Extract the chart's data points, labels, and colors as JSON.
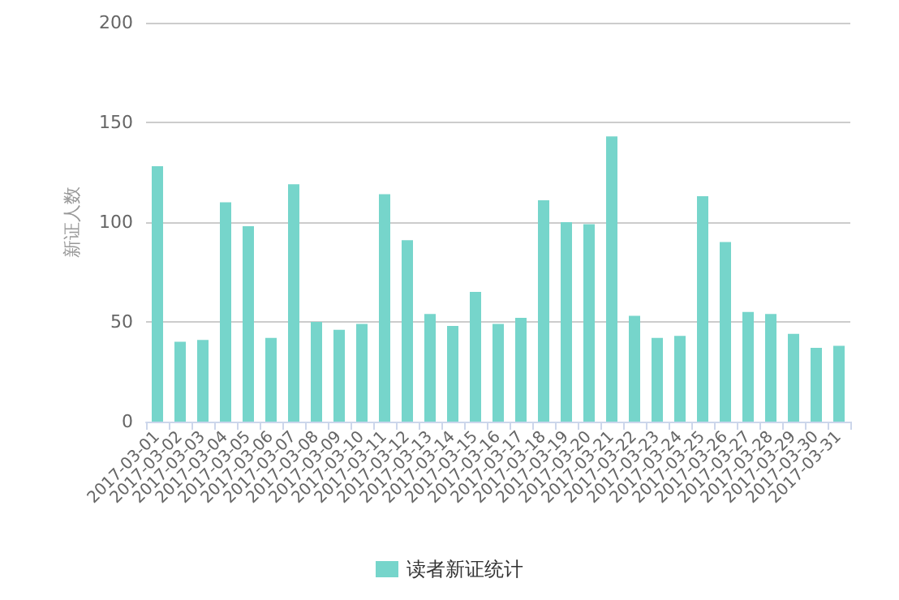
{
  "chart_data": {
    "type": "bar",
    "ylabel": "新证人数",
    "categories": [
      "2017-03-01",
      "2017-03-02",
      "2017-03-03",
      "2017-03-04",
      "2017-03-05",
      "2017-03-06",
      "2017-03-07",
      "2017-03-08",
      "2017-03-09",
      "2017-03-10",
      "2017-03-11",
      "2017-03-12",
      "2017-03-13",
      "2017-03-14",
      "2017-03-15",
      "2017-03-16",
      "2017-03-17",
      "2017-03-18",
      "2017-03-19",
      "2017-03-20",
      "2017-03-21",
      "2017-03-22",
      "2017-03-23",
      "2017-03-24",
      "2017-03-25",
      "2017-03-26",
      "2017-03-27",
      "2017-03-28",
      "2017-03-29",
      "2017-03-30",
      "2017-03-31"
    ],
    "series": [
      {
        "name": "读者新证统计",
        "color": "#76d5cb",
        "values": [
          128,
          40,
          41,
          110,
          98,
          42,
          119,
          50,
          46,
          49,
          114,
          91,
          54,
          48,
          65,
          49,
          52,
          111,
          100,
          99,
          143,
          53,
          42,
          43,
          113,
          90,
          55,
          54,
          44,
          37,
          38
        ]
      }
    ],
    "ylim": [
      0,
      200
    ],
    "yticks": [
      0,
      50,
      100,
      150,
      200
    ],
    "grid": "y",
    "legend": "bottom"
  }
}
